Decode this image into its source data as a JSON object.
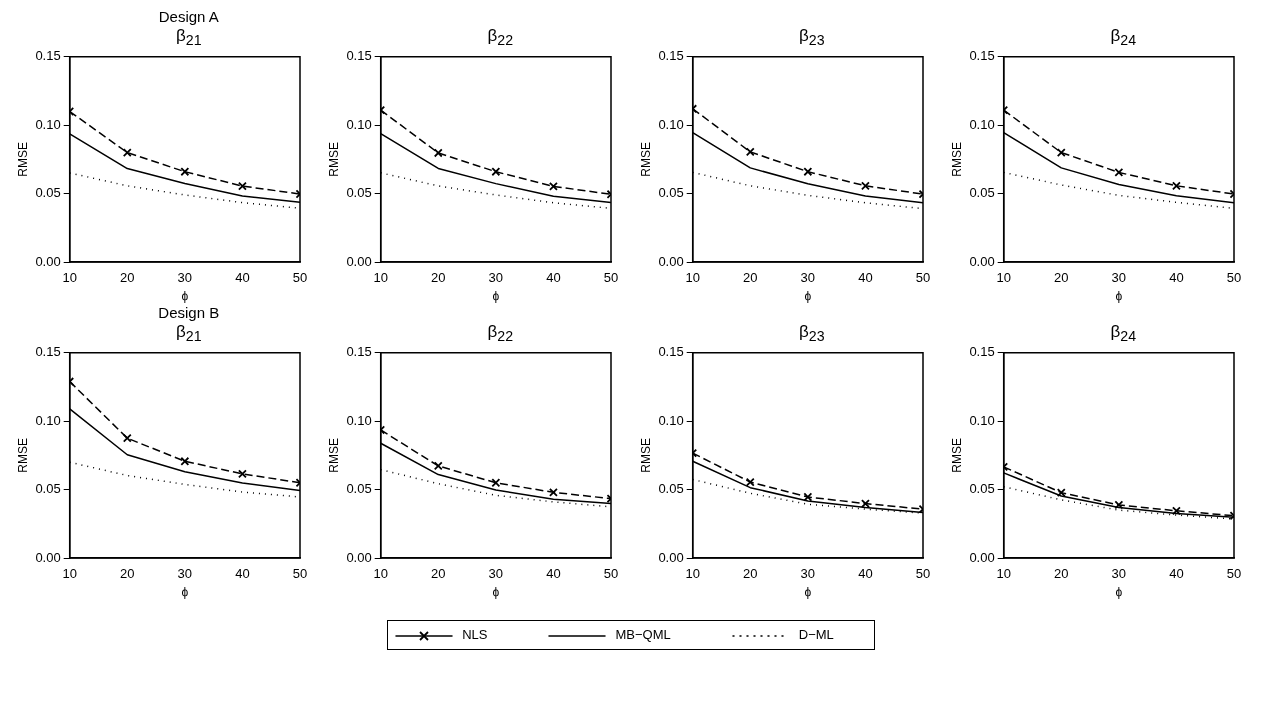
{
  "chart_data": [
    {
      "type": "line",
      "subtitle": "Design A",
      "title": "β$_{21}$",
      "xlabel": "ϕ",
      "ylabel": "RMSE",
      "x": [
        10,
        20,
        30,
        40,
        50
      ],
      "xlim": [
        10,
        50
      ],
      "xticks": [
        10,
        20,
        30,
        40,
        50
      ],
      "ylim": [
        0,
        0.15
      ],
      "yticks": [
        {
          "value": 0,
          "label": "0.00"
        },
        {
          "value": 0.05,
          "label": "0.05"
        },
        {
          "value": 0.1,
          "label": "0.10"
        },
        {
          "value": 0.15,
          "label": "0.15"
        }
      ],
      "grid": false,
      "series": [
        {
          "color": "#000000",
          "line_style": "dashed",
          "marker": "cross",
          "values": [
            0.11,
            0.08,
            0.066,
            0.0555,
            0.0497
          ]
        },
        {
          "color": "#000000",
          "line_style": "solid",
          "marker": "none",
          "values": [
            0.0936,
            0.0683,
            0.0574,
            0.0482,
            0.0437
          ]
        },
        {
          "color": "#000000",
          "line_style": "dotted",
          "marker": "none",
          "values": [
            0.0651,
            0.0557,
            0.049,
            0.0434,
            0.0393
          ]
        }
      ]
    },
    {
      "type": "line",
      "title": "β$_{22}$",
      "xlabel": "ϕ",
      "ylabel": "RMSE",
      "x": [
        10,
        20,
        30,
        40,
        50
      ],
      "xlim": [
        10,
        50
      ],
      "xticks": [
        10,
        20,
        30,
        40,
        50
      ],
      "ylim": [
        0,
        0.15
      ],
      "yticks": [
        {
          "value": 0,
          "label": "0.00"
        },
        {
          "value": 0.05,
          "label": "0.05"
        },
        {
          "value": 0.1,
          "label": "0.10"
        },
        {
          "value": 0.15,
          "label": "0.15"
        }
      ],
      "grid": false,
      "series": [
        {
          "color": "#000000",
          "line_style": "dashed",
          "marker": "cross",
          "values": [
            0.111,
            0.0797,
            0.066,
            0.0553,
            0.0495
          ]
        },
        {
          "color": "#000000",
          "line_style": "solid",
          "marker": "none",
          "values": [
            0.0938,
            0.0684,
            0.0573,
            0.048,
            0.0435
          ]
        },
        {
          "color": "#000000",
          "line_style": "dotted",
          "marker": "none",
          "values": [
            0.0652,
            0.0556,
            0.049,
            0.0433,
            0.0392
          ]
        }
      ]
    },
    {
      "type": "line",
      "title": "β$_{23}$",
      "xlabel": "ϕ",
      "ylabel": "RMSE",
      "x": [
        10,
        20,
        30,
        40,
        50
      ],
      "xlim": [
        10,
        50
      ],
      "xticks": [
        10,
        20,
        30,
        40,
        50
      ],
      "ylim": [
        0,
        0.15
      ],
      "yticks": [
        {
          "value": 0,
          "label": "0.00"
        },
        {
          "value": 0.05,
          "label": "0.05"
        },
        {
          "value": 0.1,
          "label": "0.10"
        },
        {
          "value": 0.15,
          "label": "0.15"
        }
      ],
      "grid": false,
      "series": [
        {
          "color": "#000000",
          "line_style": "dashed",
          "marker": "cross",
          "values": [
            0.112,
            0.0805,
            0.066,
            0.0557,
            0.0496
          ]
        },
        {
          "color": "#000000",
          "line_style": "solid",
          "marker": "none",
          "values": [
            0.0945,
            0.0688,
            0.0572,
            0.0483,
            0.0433
          ]
        },
        {
          "color": "#000000",
          "line_style": "dotted",
          "marker": "none",
          "values": [
            0.0655,
            0.0557,
            0.0487,
            0.0433,
            0.039
          ]
        }
      ]
    },
    {
      "type": "line",
      "title": "β$_{24}$",
      "xlabel": "ϕ",
      "ylabel": "RMSE",
      "x": [
        10,
        20,
        30,
        40,
        50
      ],
      "xlim": [
        10,
        50
      ],
      "xticks": [
        10,
        20,
        30,
        40,
        50
      ],
      "ylim": [
        0,
        0.15
      ],
      "yticks": [
        {
          "value": 0,
          "label": "0.00"
        },
        {
          "value": 0.05,
          "label": "0.05"
        },
        {
          "value": 0.1,
          "label": "0.10"
        },
        {
          "value": 0.15,
          "label": "0.15"
        }
      ],
      "grid": false,
      "series": [
        {
          "color": "#000000",
          "line_style": "dashed",
          "marker": "cross",
          "values": [
            0.111,
            0.08,
            0.0655,
            0.0557,
            0.0497
          ]
        },
        {
          "color": "#000000",
          "line_style": "solid",
          "marker": "none",
          "values": [
            0.0945,
            0.0688,
            0.0567,
            0.0485,
            0.0433
          ]
        },
        {
          "color": "#000000",
          "line_style": "dotted",
          "marker": "none",
          "values": [
            0.0655,
            0.0563,
            0.0487,
            0.0436,
            0.0392
          ]
        }
      ]
    },
    {
      "type": "line",
      "subtitle": "Design B",
      "title": "β$_{21}$",
      "xlabel": "ϕ",
      "ylabel": "RMSE",
      "x": [
        10,
        20,
        30,
        40,
        50
      ],
      "xlim": [
        10,
        50
      ],
      "xticks": [
        10,
        20,
        30,
        40,
        50
      ],
      "ylim": [
        0,
        0.15
      ],
      "yticks": [
        {
          "value": 0,
          "label": "0.00"
        },
        {
          "value": 0.05,
          "label": "0.05"
        },
        {
          "value": 0.1,
          "label": "0.10"
        },
        {
          "value": 0.15,
          "label": "0.15"
        }
      ],
      "grid": false,
      "series": [
        {
          "color": "#000000",
          "line_style": "dashed",
          "marker": "cross",
          "values": [
            0.129,
            0.0876,
            0.0707,
            0.0615,
            0.055
          ]
        },
        {
          "color": "#000000",
          "line_style": "solid",
          "marker": "none",
          "values": [
            0.109,
            0.0755,
            0.063,
            0.0548,
            0.0494
          ]
        },
        {
          "color": "#000000",
          "line_style": "dotted",
          "marker": "none",
          "values": [
            0.07,
            0.0603,
            0.0538,
            0.0482,
            0.0446
          ]
        }
      ]
    },
    {
      "type": "line",
      "title": "β$_{22}$",
      "xlabel": "ϕ",
      "ylabel": "RMSE",
      "x": [
        10,
        20,
        30,
        40,
        50
      ],
      "xlim": [
        10,
        50
      ],
      "xticks": [
        10,
        20,
        30,
        40,
        50
      ],
      "ylim": [
        0,
        0.15
      ],
      "yticks": [
        {
          "value": 0,
          "label": "0.00"
        },
        {
          "value": 0.05,
          "label": "0.05"
        },
        {
          "value": 0.1,
          "label": "0.10"
        },
        {
          "value": 0.15,
          "label": "0.15"
        }
      ],
      "grid": false,
      "series": [
        {
          "color": "#000000",
          "line_style": "dashed",
          "marker": "cross",
          "values": [
            0.0936,
            0.0673,
            0.055,
            0.048,
            0.0434
          ]
        },
        {
          "color": "#000000",
          "line_style": "solid",
          "marker": "none",
          "values": [
            0.0839,
            0.061,
            0.0497,
            0.0429,
            0.0398
          ]
        },
        {
          "color": "#000000",
          "line_style": "dotted",
          "marker": "none",
          "values": [
            0.0646,
            0.0543,
            0.0458,
            0.041,
            0.0374
          ]
        }
      ]
    },
    {
      "type": "line",
      "title": "β$_{23}$",
      "xlabel": "ϕ",
      "ylabel": "RMSE",
      "x": [
        10,
        20,
        30,
        40,
        50
      ],
      "xlim": [
        10,
        50
      ],
      "xticks": [
        10,
        20,
        30,
        40,
        50
      ],
      "ylim": [
        0,
        0.15
      ],
      "yticks": [
        {
          "value": 0,
          "label": "0.00"
        },
        {
          "value": 0.05,
          "label": "0.05"
        },
        {
          "value": 0.1,
          "label": "0.10"
        },
        {
          "value": 0.15,
          "label": "0.15"
        }
      ],
      "grid": false,
      "series": [
        {
          "color": "#000000",
          "line_style": "dashed",
          "marker": "cross",
          "values": [
            0.0767,
            0.0555,
            0.0446,
            0.0398,
            0.0357
          ]
        },
        {
          "color": "#000000",
          "line_style": "solid",
          "marker": "none",
          "values": [
            0.0707,
            0.0514,
            0.0417,
            0.0369,
            0.0333
          ]
        },
        {
          "color": "#000000",
          "line_style": "dotted",
          "marker": "none",
          "values": [
            0.0574,
            0.0473,
            0.0393,
            0.0357,
            0.0328
          ]
        }
      ]
    },
    {
      "type": "line",
      "title": "β$_{24}$",
      "xlabel": "ϕ",
      "ylabel": "RMSE",
      "x": [
        10,
        20,
        30,
        40,
        50
      ],
      "xlim": [
        10,
        50
      ],
      "xticks": [
        10,
        20,
        30,
        40,
        50
      ],
      "ylim": [
        0,
        0.15
      ],
      "yticks": [
        {
          "value": 0,
          "label": "0.00"
        },
        {
          "value": 0.05,
          "label": "0.05"
        },
        {
          "value": 0.1,
          "label": "0.10"
        },
        {
          "value": 0.15,
          "label": "0.15"
        }
      ],
      "grid": false,
      "legend": "bottom",
      "series": [
        {
          "name": "NLS",
          "color": "#000000",
          "line_style": "dashed",
          "marker": "cross",
          "values": [
            0.0666,
            0.0478,
            0.0388,
            0.0345,
            0.0309
          ]
        },
        {
          "name": "MB−QML",
          "color": "#000000",
          "line_style": "solid",
          "marker": "none",
          "values": [
            0.0622,
            0.0453,
            0.0369,
            0.0326,
            0.0297
          ]
        },
        {
          "name": "D−ML",
          "color": "#000000",
          "line_style": "dotted",
          "marker": "none",
          "values": [
            0.0521,
            0.0425,
            0.035,
            0.0314,
            0.0285
          ]
        }
      ]
    }
  ]
}
